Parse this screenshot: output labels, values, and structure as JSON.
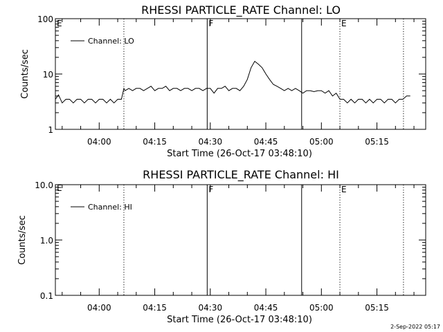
{
  "chart_data": [
    {
      "type": "line",
      "title": "RHESSI PARTICLE_RATE Channel: LO",
      "xlabel": "Start Time (26-Oct-17 03:48:10)",
      "ylabel": "Counts/sec",
      "y_scale": "log",
      "ylim": [
        1,
        100
      ],
      "y_ticks": [
        1,
        10,
        100
      ],
      "y_tick_labels": [
        "1",
        "10",
        "100"
      ],
      "x_range": [
        "03:48:10",
        "05:28:10"
      ],
      "x_ticks": [
        "04:00",
        "04:15",
        "04:30",
        "04:45",
        "05:00",
        "05:15"
      ],
      "legend": {
        "position": "top-left",
        "entries": [
          "Channel: LO"
        ]
      },
      "grid": false,
      "vlines": [
        {
          "time": "04:06:40",
          "style": "dotted",
          "label": ""
        },
        {
          "time": "04:29:10",
          "style": "solid",
          "label": "F"
        },
        {
          "time": "04:54:40",
          "style": "solid",
          "label": ""
        },
        {
          "time": "05:05:00",
          "style": "dotted",
          "label": "E"
        },
        {
          "time": "05:22:10",
          "style": "dotted",
          "label": ""
        }
      ],
      "left_edge_label": "E",
      "series": [
        {
          "name": "Channel: LO",
          "x": [
            "03:48:10",
            "03:49:00",
            "03:50:00",
            "03:51:00",
            "03:52:00",
            "03:53:00",
            "03:54:00",
            "03:55:00",
            "03:56:00",
            "03:57:00",
            "03:58:00",
            "03:59:00",
            "04:00:00",
            "04:01:00",
            "04:02:00",
            "04:03:00",
            "04:04:00",
            "04:05:00",
            "04:06:00",
            "04:06:40",
            "04:07:00",
            "04:08:00",
            "04:09:00",
            "04:10:00",
            "04:11:00",
            "04:12:00",
            "04:13:00",
            "04:14:00",
            "04:15:00",
            "04:16:00",
            "04:17:00",
            "04:18:00",
            "04:19:00",
            "04:20:00",
            "04:21:00",
            "04:22:00",
            "04:23:00",
            "04:24:00",
            "04:25:00",
            "04:26:00",
            "04:27:00",
            "04:28:00",
            "04:29:00",
            "04:30:00",
            "04:31:00",
            "04:32:00",
            "04:33:00",
            "04:34:00",
            "04:35:00",
            "04:36:00",
            "04:37:00",
            "04:38:00",
            "04:39:00",
            "04:40:00",
            "04:41:00",
            "04:42:00",
            "04:43:00",
            "04:44:00",
            "04:45:00",
            "04:46:00",
            "04:47:00",
            "04:48:00",
            "04:49:00",
            "04:50:00",
            "04:51:00",
            "04:52:00",
            "04:53:00",
            "04:54:00",
            "04:55:00",
            "04:56:00",
            "04:57:00",
            "04:58:00",
            "04:59:00",
            "05:00:00",
            "05:01:00",
            "05:02:00",
            "05:03:00",
            "05:04:00",
            "05:05:00",
            "05:06:00",
            "05:07:00",
            "05:08:00",
            "05:09:00",
            "05:10:00",
            "05:11:00",
            "05:12:00",
            "05:13:00",
            "05:14:00",
            "05:15:00",
            "05:16:00",
            "05:17:00",
            "05:18:00",
            "05:19:00",
            "05:20:00",
            "05:21:00",
            "05:22:00",
            "05:23:00",
            "05:24:00"
          ],
          "y": [
            3.5,
            4.2,
            3.0,
            3.5,
            3.5,
            3.0,
            3.5,
            3.5,
            3.0,
            3.5,
            3.5,
            3.0,
            3.5,
            3.5,
            3.0,
            3.5,
            3.0,
            3.5,
            3.5,
            5.5,
            5.0,
            5.5,
            5.0,
            5.5,
            5.5,
            5.0,
            5.5,
            6.0,
            5.0,
            5.5,
            5.5,
            6.0,
            5.0,
            5.5,
            5.5,
            5.0,
            5.5,
            5.5,
            5.0,
            5.5,
            5.5,
            5.0,
            5.5,
            5.5,
            4.5,
            5.5,
            5.5,
            6.0,
            5.0,
            5.5,
            5.5,
            5.0,
            6.0,
            8.0,
            13.0,
            17.0,
            15.0,
            13.0,
            10.0,
            8.0,
            6.5,
            6.0,
            5.5,
            5.0,
            5.5,
            5.0,
            5.5,
            5.0,
            4.5,
            5.0,
            5.0,
            4.8,
            5.0,
            5.0,
            4.5,
            5.0,
            4.0,
            4.5,
            3.5,
            3.5,
            3.0,
            3.5,
            3.0,
            3.5,
            3.5,
            3.0,
            3.5,
            3.0,
            3.5,
            3.5,
            3.0,
            3.5,
            3.5,
            3.0,
            3.5,
            3.5,
            4.0,
            4.0
          ]
        }
      ]
    },
    {
      "type": "line",
      "title": "RHESSI PARTICLE_RATE Channel: HI",
      "xlabel": "Start Time (26-Oct-17 03:48:10)",
      "ylabel": "Counts/sec",
      "y_scale": "log",
      "ylim": [
        0.1,
        10
      ],
      "y_ticks": [
        0.1,
        1,
        10
      ],
      "y_tick_labels": [
        "0.1",
        "1.0",
        "10.0"
      ],
      "x_range": [
        "03:48:10",
        "05:28:10"
      ],
      "x_ticks": [
        "04:00",
        "04:15",
        "04:30",
        "04:45",
        "05:00",
        "05:15"
      ],
      "legend": {
        "position": "top-left",
        "entries": [
          "Channel: HI"
        ]
      },
      "grid": false,
      "vlines": [
        {
          "time": "04:06:40",
          "style": "dotted",
          "label": ""
        },
        {
          "time": "04:29:10",
          "style": "solid",
          "label": "F"
        },
        {
          "time": "04:54:40",
          "style": "solid",
          "label": ""
        },
        {
          "time": "05:05:00",
          "style": "dotted",
          "label": "E"
        },
        {
          "time": "05:22:10",
          "style": "dotted",
          "label": ""
        }
      ],
      "left_edge_label": "E",
      "series": [
        {
          "name": "Channel: HI",
          "x": [],
          "y": []
        }
      ]
    }
  ],
  "footer_date": "2-Sep-2022 05:17"
}
